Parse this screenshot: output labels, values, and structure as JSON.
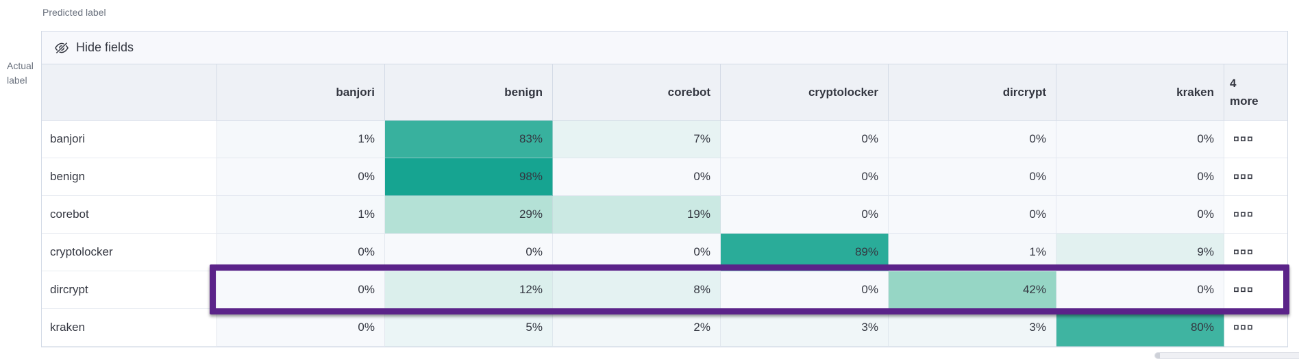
{
  "axes": {
    "predicted": "Predicted label",
    "actual": "Actual label"
  },
  "toolbar": {
    "hide_fields_label": "Hide fields",
    "icon": "eye-closed-icon"
  },
  "chart_data": {
    "type": "heatmap",
    "columns": [
      "banjori",
      "benign",
      "corebot",
      "cryptolocker",
      "dircrypt",
      "kraken"
    ],
    "more_column_label": "4 more",
    "rows": [
      {
        "label": "banjori",
        "values": [
          1,
          83,
          7,
          0,
          0,
          0
        ]
      },
      {
        "label": "benign",
        "values": [
          0,
          98,
          0,
          0,
          0,
          0
        ]
      },
      {
        "label": "corebot",
        "values": [
          1,
          29,
          19,
          0,
          0,
          0
        ]
      },
      {
        "label": "cryptolocker",
        "values": [
          0,
          0,
          0,
          89,
          1,
          9
        ]
      },
      {
        "label": "dircrypt",
        "values": [
          0,
          12,
          8,
          0,
          42,
          0
        ],
        "highlighted": true
      },
      {
        "label": "kraken",
        "values": [
          0,
          5,
          2,
          3,
          3,
          80
        ]
      }
    ],
    "value_suffix": "%",
    "row_ellipsis_icon": "boxes-horizontal-icon"
  },
  "highlight": {
    "row": "dircrypt",
    "color": "#5B2389"
  },
  "colors": {
    "heat_scale": [
      {
        "t": 0.0,
        "hex": "#F7F9FC"
      },
      {
        "t": 0.5,
        "hex": "#83CFBB"
      },
      {
        "t": 1.0,
        "hex": "#11A28F"
      }
    ],
    "header_bg": "#EEF1F6",
    "toolbar_bg": "#F7F8FC",
    "border": "#D3DAE6",
    "text": "#343741",
    "muted_text": "#69707D"
  }
}
